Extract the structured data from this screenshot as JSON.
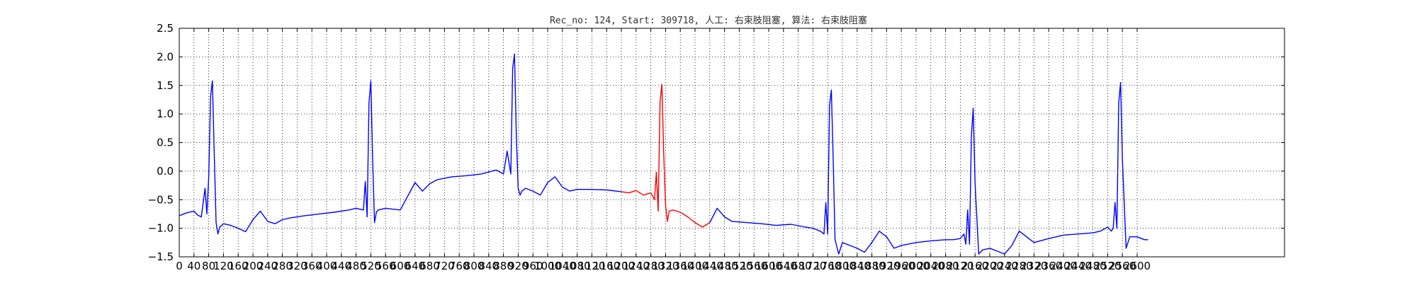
{
  "chart_data": {
    "type": "line",
    "title": "Rec_no: 124, Start: 309718, 人工: 右束肢阻塞, 算法: 右束肢阻塞",
    "xlabel": "",
    "ylabel": "",
    "xlim": [
      0,
      3000
    ],
    "ylim": [
      -1.5,
      2.5
    ],
    "grid": true,
    "x_ticks": [
      0,
      40,
      80,
      120,
      160,
      200,
      240,
      280,
      320,
      360,
      400,
      440,
      480,
      520,
      560,
      600,
      640,
      680,
      720,
      760,
      800,
      840,
      880,
      920,
      960,
      1000,
      1040,
      1080,
      1120,
      1160,
      1200,
      1240,
      1280,
      1320,
      1360,
      1400,
      1440,
      1480,
      1520,
      1560,
      1600,
      1640,
      1680,
      1720,
      1760,
      1800,
      1840,
      1880,
      1920,
      1960,
      2000,
      2040,
      2080,
      2120,
      2160,
      2200,
      2240,
      2280,
      2320,
      2360,
      2400,
      2440,
      2480,
      2520,
      2560,
      2600
    ],
    "x_tick_labels": [
      "0",
      "40",
      "80",
      "120",
      "160",
      "200",
      "240",
      "280",
      "320",
      "360",
      "400",
      "440",
      "480",
      "520",
      "560",
      "600",
      "640",
      "680",
      "720",
      "760",
      "800",
      "840",
      "880",
      "920",
      "960",
      "1000",
      "1040",
      "1080",
      "1120",
      "1160",
      "1200",
      "1240",
      "1280",
      "1320",
      "1360",
      "1400",
      "1440",
      "1480",
      "1520",
      "1560",
      "1600",
      "1640",
      "1680",
      "1720",
      "1760",
      "1800",
      "1840",
      "1880",
      "1920",
      "1960",
      "2000",
      "2040",
      "2080",
      "2120",
      "2160",
      "2200",
      "2240",
      "2280",
      "2320",
      "2360",
      "2400",
      "2440",
      "2480",
      "2520",
      "2560",
      "2600"
    ],
    "y_ticks": [
      -1.5,
      -1.0,
      -0.5,
      0.0,
      0.5,
      1.0,
      1.5,
      2.0,
      2.5
    ],
    "y_tick_labels": [
      "−1.5",
      "−1.0",
      "−0.5",
      "0.0",
      "0.5",
      "1.0",
      "1.5",
      "2.0",
      "2.5"
    ],
    "series": [
      {
        "color": "#0000ff",
        "x": [
          0,
          20,
          40,
          50,
          60,
          70,
          75,
          80,
          85,
          90,
          95,
          100,
          105,
          110,
          120,
          140,
          160,
          180,
          200,
          220,
          240,
          260,
          280,
          300,
          340,
          380,
          420,
          460,
          480,
          500,
          505,
          510,
          515,
          520,
          525,
          530,
          535,
          540,
          560,
          600,
          640,
          660,
          680,
          700,
          740,
          780,
          820,
          860,
          880,
          890,
          900,
          905,
          910,
          915,
          920,
          925,
          930,
          940,
          960,
          980,
          1000,
          1020,
          1040,
          1060,
          1080,
          1120,
          1160,
          1200
        ],
        "values": [
          -0.78,
          -0.73,
          -0.7,
          -0.77,
          -0.8,
          -0.3,
          -0.75,
          -0.1,
          1.3,
          1.58,
          0.3,
          -0.9,
          -1.1,
          -0.98,
          -0.92,
          -0.95,
          -1.0,
          -1.06,
          -0.85,
          -0.7,
          -0.88,
          -0.92,
          -0.85,
          -0.82,
          -0.78,
          -0.75,
          -0.72,
          -0.68,
          -0.65,
          -0.68,
          -0.18,
          -0.8,
          1.2,
          1.58,
          0.2,
          -0.9,
          -0.72,
          -0.68,
          -0.65,
          -0.68,
          -0.2,
          -0.35,
          -0.22,
          -0.15,
          -0.1,
          -0.08,
          -0.05,
          0.02,
          -0.05,
          0.35,
          -0.05,
          1.8,
          2.05,
          0.6,
          -0.3,
          -0.42,
          -0.35,
          -0.3,
          -0.35,
          -0.42,
          -0.2,
          -0.1,
          -0.28,
          -0.35,
          -0.32,
          -0.32,
          -0.33,
          -0.36
        ]
      },
      {
        "color": "#ff0000",
        "x": [
          1200,
          1220,
          1240,
          1260,
          1280,
          1290,
          1295,
          1300,
          1305,
          1310,
          1315,
          1320,
          1325,
          1330,
          1340,
          1360,
          1380,
          1400,
          1420,
          1440
        ],
        "values": [
          -0.36,
          -0.38,
          -0.34,
          -0.42,
          -0.38,
          -0.5,
          -0.02,
          -0.7,
          1.2,
          1.52,
          0.3,
          -0.6,
          -0.88,
          -0.7,
          -0.68,
          -0.72,
          -0.8,
          -0.9,
          -0.98,
          -0.9
        ]
      },
      {
        "color": "#0000ff",
        "x": [
          1440,
          1460,
          1480,
          1500,
          1540,
          1580,
          1620,
          1660,
          1700,
          1720,
          1740,
          1750,
          1755,
          1760,
          1765,
          1770,
          1775,
          1780,
          1790,
          1800,
          1820,
          1840,
          1860,
          1880,
          1900,
          1920,
          1940,
          1960,
          2000,
          2040,
          2080,
          2100,
          2120,
          2130,
          2135,
          2140,
          2145,
          2150,
          2155,
          2160,
          2170,
          2180,
          2200,
          2220,
          2240,
          2260,
          2280,
          2300,
          2320,
          2360,
          2400,
          2440,
          2480,
          2500,
          2520,
          2530,
          2535,
          2540,
          2545,
          2550,
          2555,
          2560,
          2570,
          2580,
          2600,
          2620,
          2630
        ],
        "values": [
          -0.9,
          -0.65,
          -0.8,
          -0.88,
          -0.9,
          -0.92,
          -0.95,
          -0.93,
          -0.98,
          -1.0,
          -1.05,
          -1.1,
          -0.55,
          -1.1,
          1.15,
          1.42,
          0.2,
          -1.2,
          -1.45,
          -1.25,
          -1.3,
          -1.35,
          -1.42,
          -1.25,
          -1.05,
          -1.15,
          -1.35,
          -1.3,
          -1.25,
          -1.22,
          -1.2,
          -1.2,
          -1.18,
          -1.1,
          -1.28,
          -0.68,
          -1.28,
          0.6,
          1.1,
          -0.2,
          -1.45,
          -1.38,
          -1.35,
          -1.4,
          -1.45,
          -1.3,
          -1.05,
          -1.15,
          -1.25,
          -1.18,
          -1.12,
          -1.1,
          -1.08,
          -1.05,
          -0.98,
          -1.05,
          -1.0,
          -0.55,
          -1.0,
          1.2,
          1.55,
          0.2,
          -1.35,
          -1.15,
          -1.15,
          -1.2,
          -1.2
        ]
      }
    ]
  }
}
